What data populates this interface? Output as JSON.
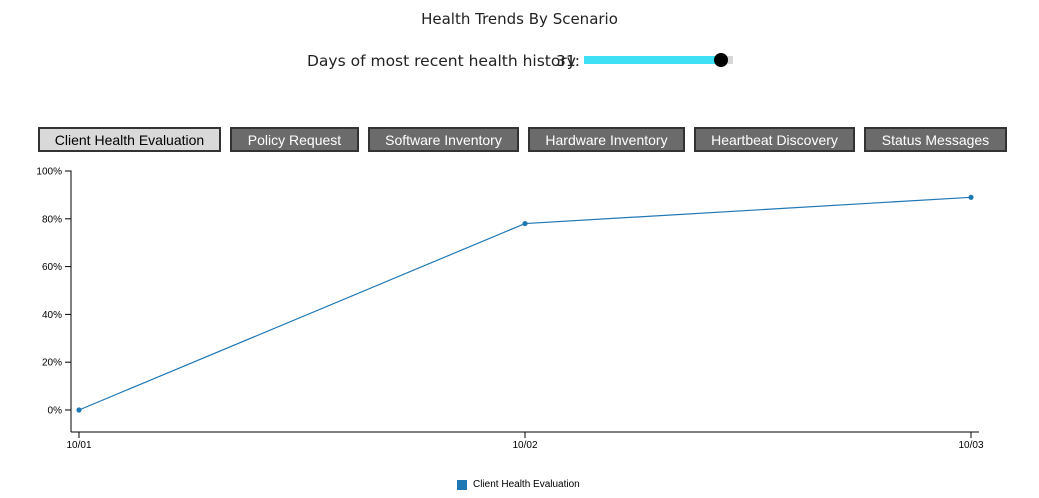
{
  "header": {
    "title": "Health Trends By Scenario",
    "days_label": "Days of most recent health history:",
    "days_value": "31",
    "days_fraction": 0.92
  },
  "tabs": [
    {
      "label": "Client Health Evaluation",
      "active": true
    },
    {
      "label": "Policy Request",
      "active": false
    },
    {
      "label": "Software Inventory",
      "active": false
    },
    {
      "label": "Hardware Inventory",
      "active": false
    },
    {
      "label": "Heartbeat Discovery",
      "active": false
    },
    {
      "label": "Status Messages",
      "active": false
    }
  ],
  "colors": {
    "series": "#1f77b4",
    "slider_fill": "#3ee0f5",
    "tab_inactive": "#6b6b6b",
    "tab_active": "#d9d9d9"
  },
  "chart_data": {
    "type": "line",
    "categories": [
      "10/01",
      "10/02",
      "10/03"
    ],
    "series": [
      {
        "name": "Client Health Evaluation",
        "values": [
          0,
          78,
          89
        ]
      }
    ],
    "y_ticks": [
      "0%",
      "20%",
      "40%",
      "60%",
      "80%",
      "100%"
    ],
    "ylim": [
      0,
      100
    ],
    "legend": "bottom-center"
  }
}
